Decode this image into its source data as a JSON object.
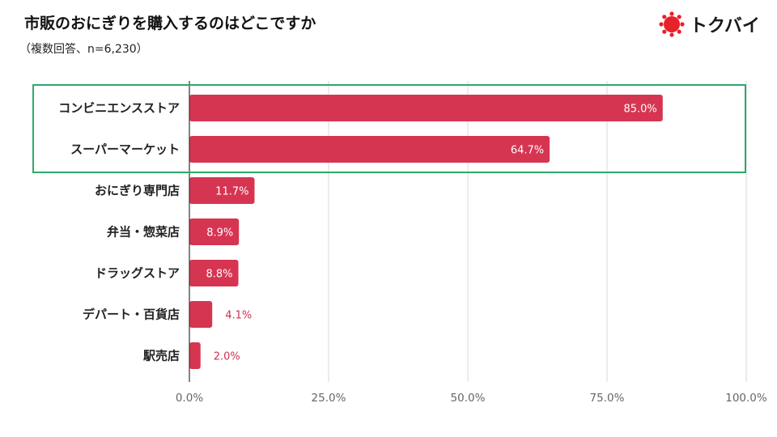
{
  "header": {
    "title": "市販のおにぎりを購入するのはどこですか",
    "subtitle": "（複数回答、n=6,230）"
  },
  "logo": {
    "text": "トクバイ",
    "brand_color": "#e8212a"
  },
  "colors": {
    "bar": "#d63552",
    "highlight_box": "#2ea86a",
    "grid": "#d9d9d9",
    "axis": "#333333"
  },
  "chart_data": {
    "type": "bar",
    "orientation": "horizontal",
    "title": "市販のおにぎりを購入するのはどこですか",
    "subtitle": "（複数回答、n=6,230）",
    "categories": [
      "コンビニエンスストア",
      "スーパーマーケット",
      "おにぎり専門店",
      "弁当・惣菜店",
      "ドラッグストア",
      "デパート・百貨店",
      "駅売店"
    ],
    "values": [
      85.0,
      64.7,
      11.7,
      8.9,
      8.8,
      4.1,
      2.0
    ],
    "value_labels": [
      "85.0%",
      "64.7%",
      "11.7%",
      "8.9%",
      "8.8%",
      "4.1%",
      "2.0%"
    ],
    "xlim": [
      0,
      100
    ],
    "xticks": [
      0,
      25,
      50,
      75,
      100
    ],
    "xtick_labels": [
      "0.0%",
      "25.0%",
      "50.0%",
      "75.0%",
      "100.0%"
    ],
    "grid": true,
    "highlighted_categories": [
      "コンビニエンスストア",
      "スーパーマーケット"
    ]
  }
}
